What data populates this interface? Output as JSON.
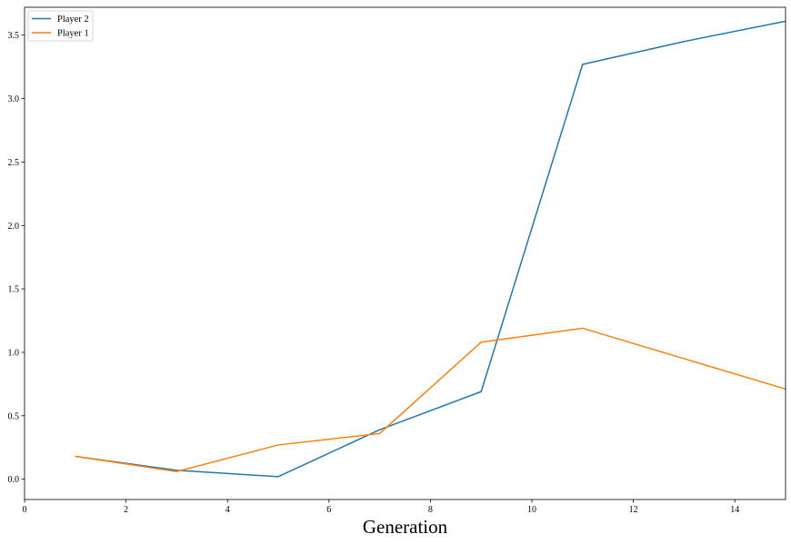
{
  "chart_data": {
    "type": "line",
    "title": "",
    "xlabel": "Generation",
    "ylabel": "",
    "xlim": [
      0,
      15
    ],
    "ylim": [
      -0.16,
      3.72
    ],
    "xticks": [
      0,
      2,
      4,
      6,
      8,
      10,
      12,
      14
    ],
    "yticks": [
      0.0,
      0.5,
      1.0,
      1.5,
      2.0,
      2.5,
      3.0,
      3.5
    ],
    "ytick_labels": [
      "0.0",
      "0.5",
      "1.0",
      "1.5",
      "2.0",
      "2.5",
      "3.0",
      "3.5"
    ],
    "grid": false,
    "legend_position": "top-left",
    "series": [
      {
        "name": "Player 2",
        "color": "#1f77b4",
        "x": [
          1,
          3,
          5,
          7,
          9,
          11,
          13,
          15
        ],
        "values": [
          0.18,
          0.07,
          0.02,
          0.39,
          0.69,
          3.27,
          3.45,
          3.61
        ]
      },
      {
        "name": "Player 1",
        "color": "#ff7f0e",
        "x": [
          1,
          3,
          5,
          7,
          9,
          11,
          13,
          15
        ],
        "values": [
          0.18,
          0.06,
          0.27,
          0.36,
          1.08,
          1.19,
          0.95,
          0.71
        ]
      }
    ]
  }
}
